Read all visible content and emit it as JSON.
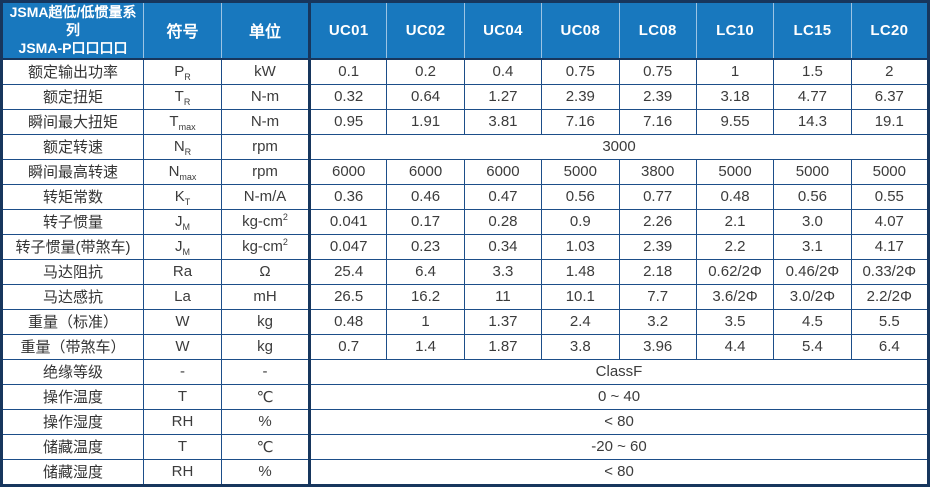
{
  "colors": {
    "header_bg": "#1878be",
    "header_text": "#ffffff",
    "inner_border": "#1d4e89",
    "outer_border": "#17365d",
    "body_text": "#3c3c3c"
  },
  "table": {
    "header": {
      "series_title_line1": "JSMA超低/低惯量系列",
      "series_title_line2": "JSMA-P口口口口",
      "symbol_col": "符号",
      "unit_col": "单位",
      "models": [
        "UC01",
        "UC02",
        "UC04",
        "UC08",
        "LC08",
        "LC10",
        "LC15",
        "LC20"
      ]
    },
    "rows": [
      {
        "label": "额定输出功率",
        "symbol": "P",
        "symbol_sub": "R",
        "unit": "kW",
        "values": [
          "0.1",
          "0.2",
          "0.4",
          "0.75",
          "0.75",
          "1",
          "1.5",
          "2"
        ]
      },
      {
        "label": "额定扭矩",
        "symbol": "T",
        "symbol_sub": "R",
        "unit": "N-m",
        "values": [
          "0.32",
          "0.64",
          "1.27",
          "2.39",
          "2.39",
          "3.18",
          "4.77",
          "6.37"
        ]
      },
      {
        "label": "瞬间最大扭矩",
        "symbol": "T",
        "symbol_sub": "max",
        "unit": "N-m",
        "values": [
          "0.95",
          "1.91",
          "3.81",
          "7.16",
          "7.16",
          "9.55",
          "14.3",
          "19.1"
        ]
      },
      {
        "label": "额定转速",
        "symbol": "N",
        "symbol_sub": "R",
        "unit": "rpm",
        "merged": "3000"
      },
      {
        "label": "瞬间最高转速",
        "symbol": "N",
        "symbol_sub": "max",
        "unit": "rpm",
        "values": [
          "6000",
          "6000",
          "6000",
          "5000",
          "3800",
          "5000",
          "5000",
          "5000"
        ]
      },
      {
        "label": "转矩常数",
        "symbol": "K",
        "symbol_sub": "T",
        "unit": "N-m/A",
        "values": [
          "0.36",
          "0.46",
          "0.47",
          "0.56",
          "0.77",
          "0.48",
          "0.56",
          "0.55"
        ]
      },
      {
        "label": "转子惯量",
        "symbol": "J",
        "symbol_sub": "M",
        "unit": "kg-cm",
        "unit_sup": "2",
        "values": [
          "0.041",
          "0.17",
          "0.28",
          "0.9",
          "2.26",
          "2.1",
          "3.0",
          "4.07"
        ]
      },
      {
        "label": "转子惯量(带煞车)",
        "symbol": "J",
        "symbol_sub": "M",
        "unit": "kg-cm",
        "unit_sup": "2",
        "values": [
          "0.047",
          "0.23",
          "0.34",
          "1.03",
          "2.39",
          "2.2",
          "3.1",
          "4.17"
        ]
      },
      {
        "label": "马达阻抗",
        "symbol": "Ra",
        "symbol_sub": "",
        "unit": "Ω",
        "values": [
          "25.4",
          "6.4",
          "3.3",
          "1.48",
          "2.18",
          "0.62/2Φ",
          "0.46/2Φ",
          "0.33/2Φ"
        ]
      },
      {
        "label": "马达感抗",
        "symbol": "La",
        "symbol_sub": "",
        "unit": "mH",
        "values": [
          "26.5",
          "16.2",
          "11",
          "10.1",
          "7.7",
          "3.6/2Φ",
          "3.0/2Φ",
          "2.2/2Φ"
        ]
      },
      {
        "label": "重量（标准）",
        "symbol": "W",
        "symbol_sub": "",
        "unit": "kg",
        "values": [
          "0.48",
          "1",
          "1.37",
          "2.4",
          "3.2",
          "3.5",
          "4.5",
          "5.5"
        ]
      },
      {
        "label": "重量（带煞车）",
        "symbol": "W",
        "symbol_sub": "",
        "unit": "kg",
        "values": [
          "0.7",
          "1.4",
          "1.87",
          "3.8",
          "3.96",
          "4.4",
          "5.4",
          "6.4"
        ]
      },
      {
        "label": "绝缘等级",
        "symbol": "-",
        "symbol_sub": "",
        "unit": "-",
        "merged": "ClassF"
      },
      {
        "label": "操作温度",
        "symbol": "T",
        "symbol_sub": "",
        "unit": "℃",
        "merged": "0 ~ 40"
      },
      {
        "label": "操作湿度",
        "symbol": "RH",
        "symbol_sub": "",
        "unit": "%",
        "merged": "< 80"
      },
      {
        "label": "储藏温度",
        "symbol": "T",
        "symbol_sub": "",
        "unit": "℃",
        "merged": "-20 ~ 60"
      },
      {
        "label": "储藏湿度",
        "symbol": "RH",
        "symbol_sub": "",
        "unit": "%",
        "merged": "< 80"
      }
    ]
  }
}
